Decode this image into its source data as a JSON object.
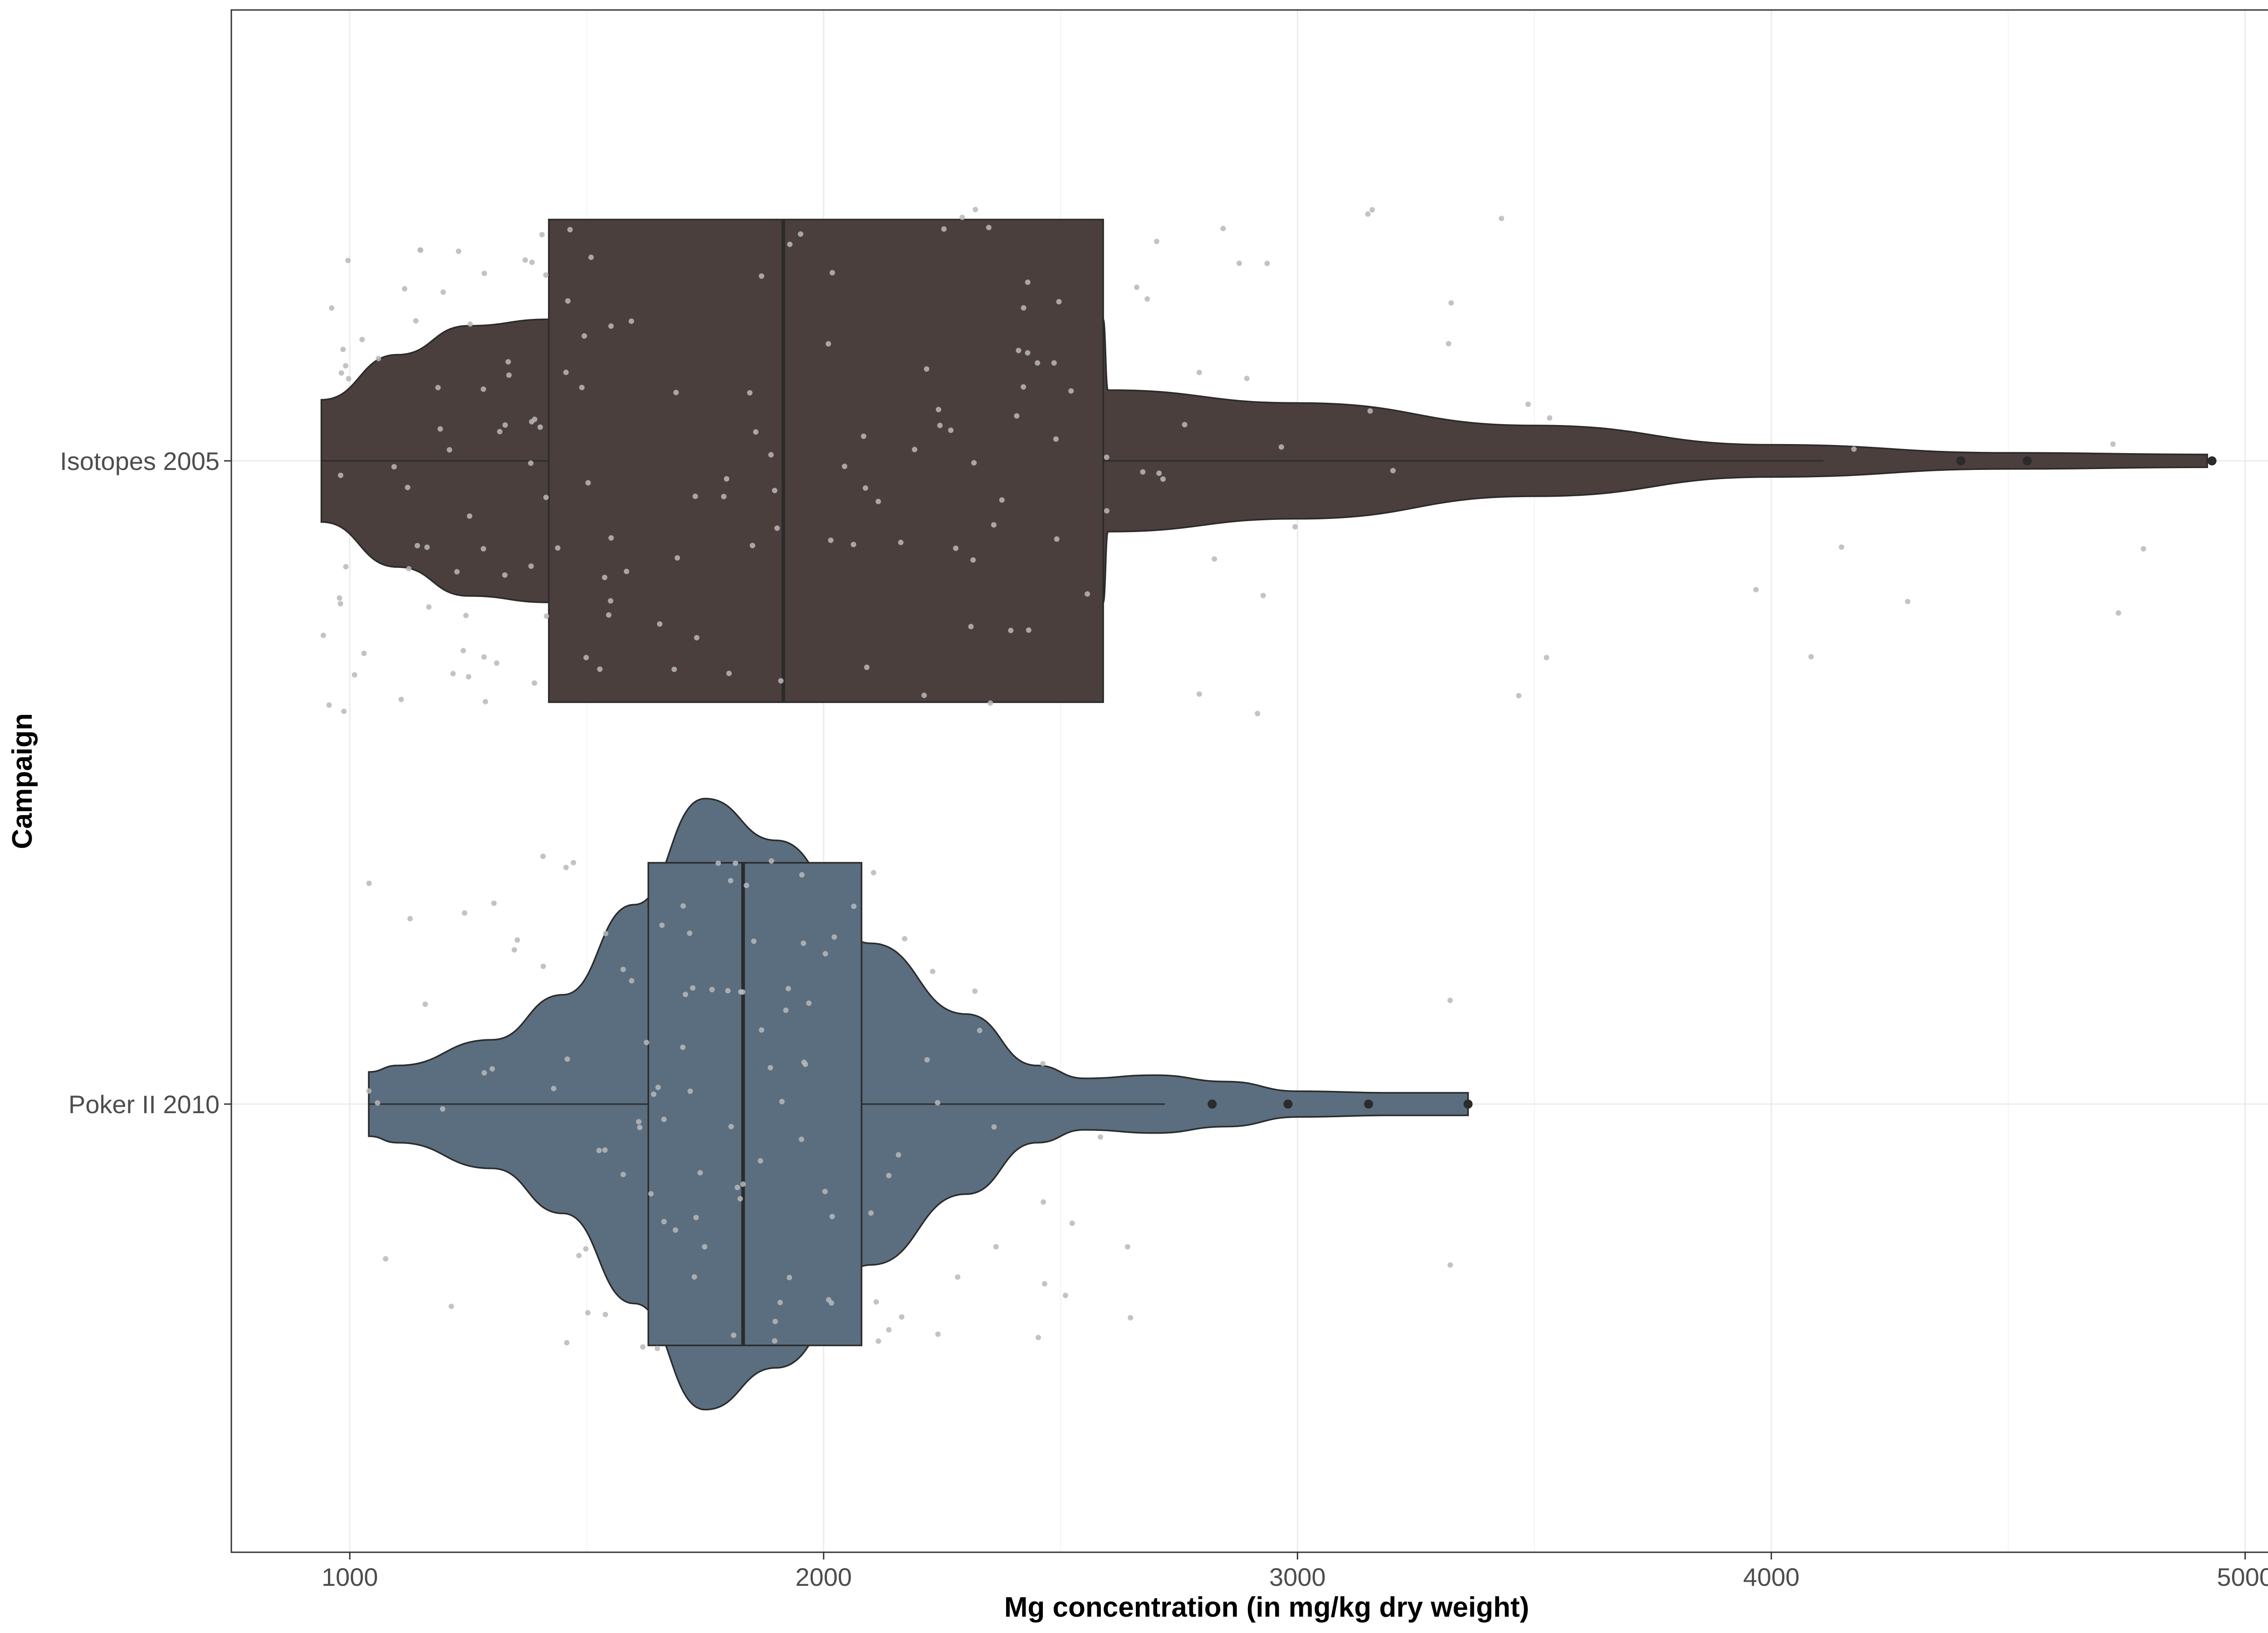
{
  "chart_data": {
    "type": "violin",
    "xlabel": "Mg concentration (in mg/kg dry weight)",
    "ylabel": "Campaign",
    "xlim": [
      750,
      5120
    ],
    "xticks": [
      1000,
      2000,
      3000,
      4000,
      5000
    ],
    "xtick_labels": [
      "1000",
      "2000",
      "3000",
      "4000",
      "5000"
    ],
    "categories": [
      "Isotopes 2005",
      "Poker II 2010"
    ],
    "grid": true,
    "legend": "none",
    "colors": {
      "Isotopes 2005": "#4b3f3d",
      "Poker II 2010": "#5a6e7f",
      "outline": "#2b2b2b",
      "jitter_points": "#b8b8b8",
      "gridline": "#ebebeb",
      "panel_border": "#333333"
    },
    "series": [
      {
        "name": "Isotopes 2005",
        "box": {
          "min": 940,
          "q1": 1420,
          "median": 1915,
          "q3": 2590,
          "whisker_high": 4110
        },
        "outliers": [
          4400,
          4540,
          4930
        ],
        "violin_profile": [
          [
            940,
            0.19
          ],
          [
            1100,
            0.33
          ],
          [
            1250,
            0.42
          ],
          [
            1420,
            0.44
          ],
          [
            1600,
            0.44
          ],
          [
            2000,
            0.44
          ],
          [
            2590,
            0.44
          ],
          [
            2600,
            0.22
          ],
          [
            3000,
            0.18
          ],
          [
            3500,
            0.11
          ],
          [
            4000,
            0.05
          ],
          [
            4500,
            0.025
          ],
          [
            4920,
            0.02
          ]
        ]
      },
      {
        "name": "Poker II 2010",
        "box": {
          "min": 1040,
          "q1": 1630,
          "median": 1830,
          "q3": 2080,
          "whisker_high": 2720
        },
        "outliers": [
          2820,
          2980,
          3150,
          3360
        ],
        "violin_profile": [
          [
            1040,
            0.1
          ],
          [
            1100,
            0.12
          ],
          [
            1300,
            0.2
          ],
          [
            1450,
            0.34
          ],
          [
            1600,
            0.62
          ],
          [
            1750,
            0.95
          ],
          [
            1900,
            0.82
          ],
          [
            2100,
            0.5
          ],
          [
            2300,
            0.28
          ],
          [
            2450,
            0.12
          ],
          [
            2550,
            0.08
          ],
          [
            2700,
            0.09
          ],
          [
            2850,
            0.07
          ],
          [
            3000,
            0.04
          ],
          [
            3200,
            0.035
          ],
          [
            3360,
            0.035
          ]
        ]
      }
    ],
    "jitter_note": "Raw observations are overlaid as light grey jittered points"
  }
}
